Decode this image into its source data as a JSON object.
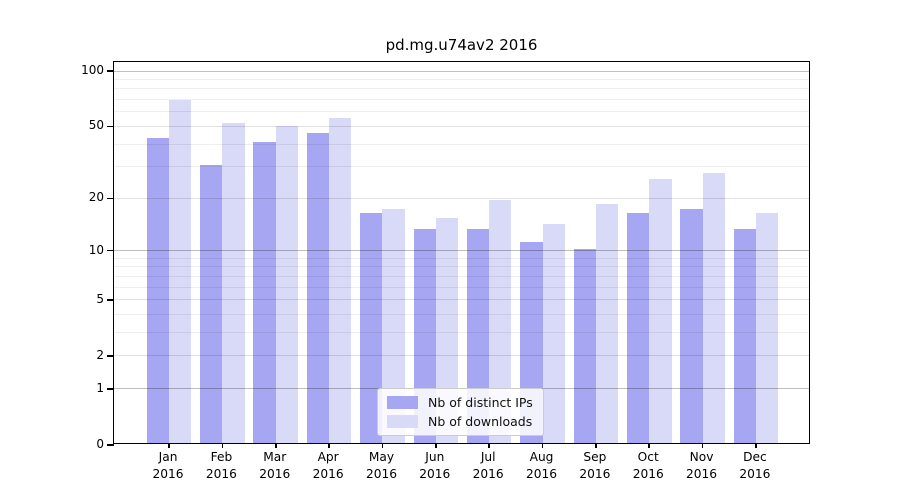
{
  "chart_data": {
    "type": "bar",
    "title": "pd.mg.u74av2 2016",
    "categories": [
      "Jan 2016",
      "Feb 2016",
      "Mar 2016",
      "Apr 2016",
      "May 2016",
      "Jun 2016",
      "Jul 2016",
      "Aug 2016",
      "Sep 2016",
      "Oct 2016",
      "Nov 2016",
      "Dec 2016"
    ],
    "series": [
      {
        "name": "Nb of distinct IPs",
        "color": "#a6a6f2",
        "values": [
          42,
          30,
          40,
          45,
          16,
          13,
          13,
          11,
          10,
          16,
          17,
          13
        ]
      },
      {
        "name": "Nb of downloads",
        "color": "#d9d9f8",
        "values": [
          68,
          51,
          49,
          54,
          17,
          15,
          19,
          14,
          18,
          25,
          27,
          16
        ]
      }
    ],
    "xlabel": "",
    "ylabel": "",
    "yscale": "log1p",
    "ylim": [
      0,
      112
    ],
    "y_major_ticks": [
      0,
      1,
      2,
      5,
      10,
      20,
      50,
      100
    ],
    "y_minor_ticks": [
      3,
      4,
      6,
      7,
      8,
      9,
      30,
      40,
      60,
      70,
      80,
      90
    ],
    "grid": true,
    "legend_position": "lower center inside plot"
  }
}
